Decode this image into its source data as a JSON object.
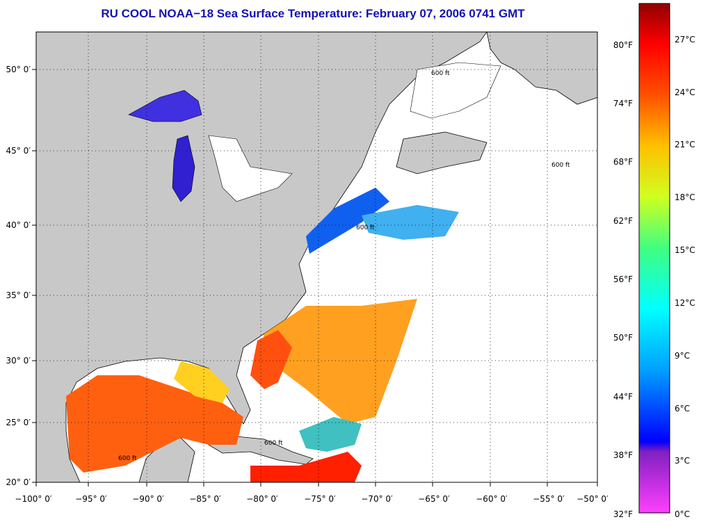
{
  "title": "RU COOL  NOAA−18  Sea Surface Temperature:  February 07, 2006 0741 GMT",
  "map": {
    "lon_labels": [
      "−100° 0′",
      "−95° 0′",
      "−90° 0′",
      "−85° 0′",
      "−80° 0′",
      "−75° 0′",
      "−70° 0′",
      "−65° 0′",
      "−60° 0′",
      "−55° 0′",
      "−50° 0′"
    ],
    "lat_labels": [
      "50° 0′",
      "45° 0′",
      "40° 0′",
      "35° 0′",
      "30° 0′",
      "25° 0′",
      "20° 0′"
    ],
    "contour_label": "600 ft",
    "colors": {
      "land": "#c8c8c8",
      "cloud": "#ffffff",
      "grid": "#000000"
    }
  },
  "colorbar": {
    "fahrenheit_labels": [
      "80°F",
      "74°F",
      "68°F",
      "62°F",
      "56°F",
      "50°F",
      "44°F",
      "38°F",
      "32°F"
    ],
    "celsius_labels": [
      "27°C",
      "24°C",
      "21°C",
      "18°C",
      "15°C",
      "12°C",
      "9°C",
      "6°C",
      "3°C",
      "0°C"
    ]
  }
}
